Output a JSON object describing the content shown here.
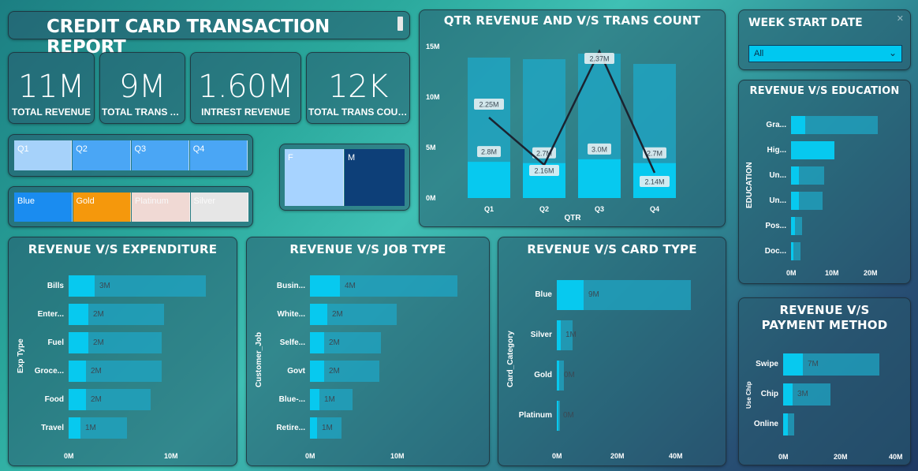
{
  "title": "CREDIT CARD TRANSACTION REPORT",
  "kpis": [
    {
      "value": "11M",
      "label": "TOTAL REVENUE"
    },
    {
      "value": "9M",
      "label": "TOTAL TRANS A..."
    },
    {
      "value": "1.60M",
      "label": "INTREST REVENUE"
    },
    {
      "value": "12K",
      "label": "TOTAL TRANS COUNT"
    }
  ],
  "quarter_slicer": [
    "Q1",
    "Q2",
    "Q3",
    "Q4"
  ],
  "card_slicer": [
    "Blue",
    "Gold",
    "Platinum",
    "Silver"
  ],
  "gender_slicer": [
    "F",
    "M"
  ],
  "colors": {
    "bar_main": "#07c9ef",
    "bar_bg": "#1fa6c4",
    "blue": "#1a8cf0",
    "gold": "#f5980c",
    "platinum": "#f0d9d4",
    "silver": "#e6e6e6",
    "gender_f": "#a7d3ff",
    "gender_m": "#0d3f78"
  },
  "week_filter": {
    "title": "WEEK START DATE",
    "selected": "All"
  },
  "charts": {
    "qtr": {
      "chart_data": {
        "type": "bar",
        "title": "QTR REVENUE AND V/S TRANS COUNT",
        "xlabel": "QTR",
        "categories": [
          "Q1",
          "Q2",
          "Q3",
          "Q4"
        ],
        "series": [
          {
            "values": [
              2.8,
              2.7,
              3.0,
              2.7
            ]
          },
          {
            "values": [
              2.25,
              2.16,
              2.37,
              2.14
            ]
          }
        ],
        "bar_labels": [
          "2.8M",
          "2.7M",
          "3.0M",
          "2.7M"
        ],
        "line_labels": [
          "2.25M",
          "2.16M",
          "2.37M",
          "2.14M"
        ],
        "y_ticks": [
          "15M",
          "10M",
          "5M",
          "0M"
        ],
        "ylim": [
          0,
          15
        ]
      }
    },
    "education": {
      "chart_data": {
        "type": "bar",
        "title": "REVENUE V/S EDUCATION",
        "ylabel": "EDUCATION",
        "categories": [
          "Gra...",
          "Hig...",
          "Un...",
          "Un...",
          "Pos...",
          "Doc..."
        ],
        "values": [
          22,
          11,
          8,
          8,
          3,
          2
        ],
        "value_labels": [
          "",
          "",
          "",
          "",
          "",
          ""
        ],
        "x_ticks": [
          "0M",
          "10M",
          "20M"
        ]
      }
    },
    "expenditure": {
      "chart_data": {
        "type": "bar",
        "title": "REVENUE V/S EXPENDITURE",
        "ylabel": "Exp Type",
        "categories": [
          "Bills",
          "Enter...",
          "Fuel",
          "Groce...",
          "Food",
          "Travel"
        ],
        "values": [
          2.6,
          1.6,
          1.6,
          1.6,
          1.6,
          1.0
        ],
        "value_labels": [
          "3M",
          "2M",
          "2M",
          "2M",
          "2M",
          "1M"
        ],
        "x_ticks": [
          "0M",
          "10M"
        ]
      }
    },
    "job": {
      "chart_data": {
        "type": "bar",
        "title": "REVENUE V/S JOB TYPE",
        "ylabel": "Customer_Job",
        "categories": [
          "Busin...",
          "White...",
          "Selfe...",
          "Govt",
          "Blue-...",
          "Retire..."
        ],
        "values": [
          3.6,
          2.1,
          1.8,
          1.8,
          1.1,
          0.8
        ],
        "value_labels": [
          "4M",
          "2M",
          "2M",
          "2M",
          "1M",
          "1M"
        ],
        "x_ticks": [
          "0M",
          "10M"
        ]
      }
    },
    "card": {
      "chart_data": {
        "type": "bar",
        "title": "REVENUE V/S CARD TYPE",
        "ylabel": "Card_Category",
        "categories": [
          "Blue",
          "Silver",
          "Gold",
          "Platinum"
        ],
        "values": [
          9,
          1,
          0.3,
          0.1
        ],
        "value_labels": [
          "9M",
          "1M",
          "0M",
          "0M"
        ],
        "x_ticks": [
          "0M",
          "20M",
          "40M"
        ]
      }
    },
    "payment": {
      "chart_data": {
        "type": "bar",
        "title": "REVENUE V/S PAYMENT METHOD",
        "ylabel": "Use Chip",
        "categories": [
          "Swipe",
          "Chip",
          "Online"
        ],
        "values": [
          7,
          3,
          1
        ],
        "value_labels": [
          "7M",
          "3M",
          ""
        ],
        "x_ticks": [
          "0M",
          "20M",
          "40M"
        ]
      }
    }
  }
}
